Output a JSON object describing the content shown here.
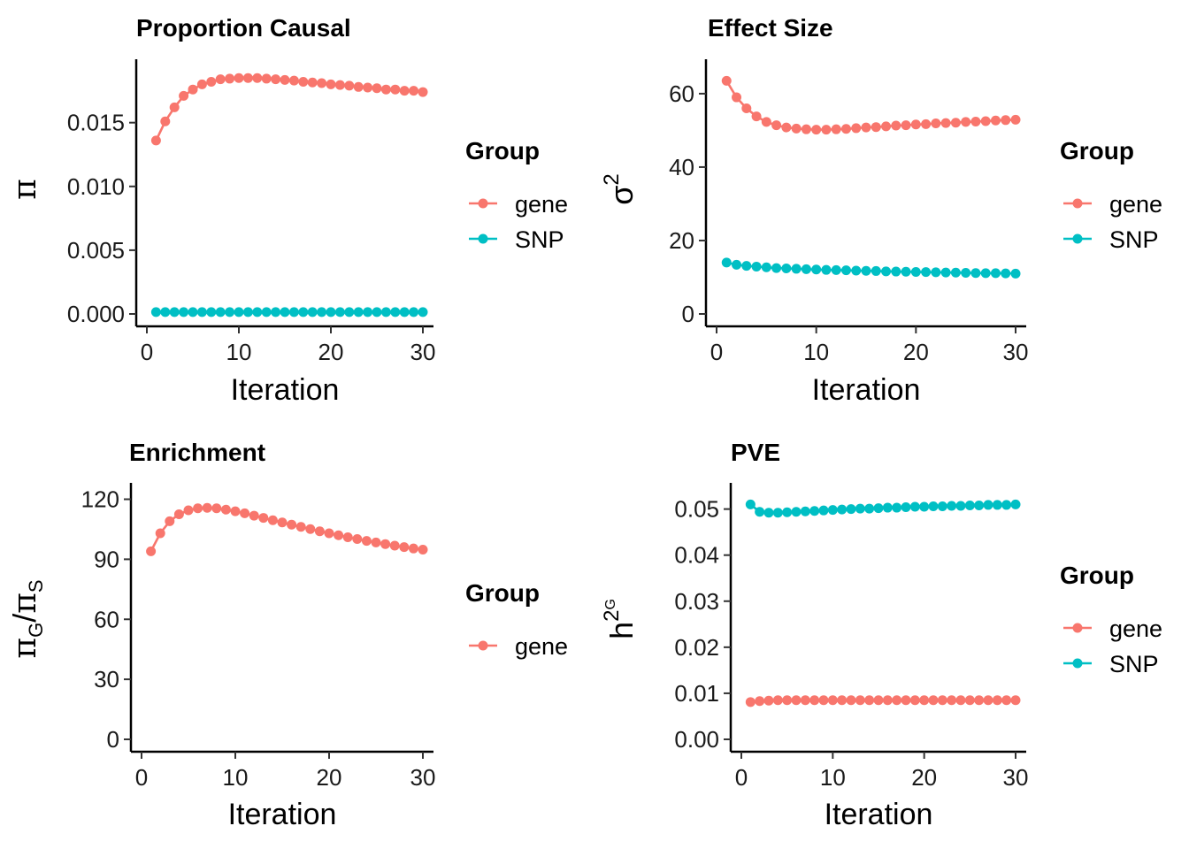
{
  "colors": {
    "gene": "#F8766D",
    "SNP": "#00BFC4"
  },
  "legend": {
    "title": "Group",
    "gene": "gene",
    "snp": "SNP"
  },
  "chart_data": [
    {
      "type": "line",
      "title": "Proportion Causal",
      "xlabel": "Iteration",
      "ylabel": "π",
      "xlim": [
        0,
        30
      ],
      "ylim": [
        0,
        0.019
      ],
      "xticks": [
        0,
        10,
        20,
        30
      ],
      "yticks": [
        0.0,
        0.005,
        0.01,
        0.015
      ],
      "ytick_labels": [
        "0.000",
        "0.005",
        "0.010",
        "0.015"
      ],
      "legend_entries": [
        "gene",
        "SNP"
      ],
      "x": [
        1,
        2,
        3,
        4,
        5,
        6,
        7,
        8,
        9,
        10,
        11,
        12,
        13,
        14,
        15,
        16,
        17,
        18,
        19,
        20,
        21,
        22,
        23,
        24,
        25,
        26,
        27,
        28,
        29,
        30
      ],
      "series": [
        {
          "name": "gene",
          "values": [
            0.0136,
            0.0151,
            0.0162,
            0.0171,
            0.0176,
            0.018,
            0.0182,
            0.0184,
            0.01845,
            0.0185,
            0.0185,
            0.0185,
            0.01845,
            0.0184,
            0.01835,
            0.0183,
            0.0182,
            0.01815,
            0.0181,
            0.018,
            0.01795,
            0.0179,
            0.0178,
            0.01775,
            0.0177,
            0.0176,
            0.0176,
            0.0175,
            0.0175,
            0.0174
          ]
        },
        {
          "name": "SNP",
          "values": [
            0.00015,
            0.00015,
            0.00015,
            0.00015,
            0.00015,
            0.00015,
            0.00015,
            0.00015,
            0.00015,
            0.00015,
            0.00015,
            0.00015,
            0.00015,
            0.00015,
            0.00015,
            0.00015,
            0.00015,
            0.00015,
            0.00015,
            0.00015,
            0.00015,
            0.00015,
            0.00015,
            0.00015,
            0.00015,
            0.00015,
            0.00015,
            0.00015,
            0.00015,
            0.00015
          ]
        }
      ]
    },
    {
      "type": "line",
      "title": "Effect Size",
      "xlabel": "Iteration",
      "ylabel": "σ2",
      "xlim": [
        0,
        30
      ],
      "ylim": [
        0,
        66
      ],
      "xticks": [
        0,
        10,
        20,
        30
      ],
      "yticks": [
        0,
        20,
        40,
        60
      ],
      "ytick_labels": [
        "0",
        "20",
        "40",
        "60"
      ],
      "legend_entries": [
        "gene",
        "SNP"
      ],
      "x": [
        1,
        2,
        3,
        4,
        5,
        6,
        7,
        8,
        9,
        10,
        11,
        12,
        13,
        14,
        15,
        16,
        17,
        18,
        19,
        20,
        21,
        22,
        23,
        24,
        25,
        26,
        27,
        28,
        29,
        30
      ],
      "series": [
        {
          "name": "gene",
          "values": [
            63.5,
            59,
            56,
            53.8,
            52.3,
            51.4,
            50.8,
            50.5,
            50.3,
            50.2,
            50.2,
            50.3,
            50.4,
            50.6,
            50.8,
            50.9,
            51.1,
            51.3,
            51.4,
            51.6,
            51.7,
            51.9,
            52,
            52.1,
            52.3,
            52.4,
            52.5,
            52.7,
            52.8,
            52.9
          ]
        },
        {
          "name": "SNP",
          "values": [
            14,
            13.4,
            13.1,
            12.9,
            12.7,
            12.5,
            12.4,
            12.3,
            12.2,
            12.1,
            12,
            11.95,
            11.9,
            11.8,
            11.75,
            11.7,
            11.6,
            11.55,
            11.5,
            11.45,
            11.4,
            11.35,
            11.3,
            11.25,
            11.2,
            11.15,
            11.1,
            11.1,
            11.05,
            11
          ]
        }
      ]
    },
    {
      "type": "line",
      "title": "Enrichment",
      "xlabel": "Iteration",
      "ylabel": "πG/πS",
      "xlim": [
        0,
        30
      ],
      "ylim": [
        0,
        122
      ],
      "xticks": [
        0,
        10,
        20,
        30
      ],
      "yticks": [
        0,
        30,
        60,
        90,
        120
      ],
      "ytick_labels": [
        "0",
        "30",
        "60",
        "90",
        "120"
      ],
      "legend_entries": [
        "gene"
      ],
      "x": [
        1,
        2,
        3,
        4,
        5,
        6,
        7,
        8,
        9,
        10,
        11,
        12,
        13,
        14,
        15,
        16,
        17,
        18,
        19,
        20,
        21,
        22,
        23,
        24,
        25,
        26,
        27,
        28,
        29,
        30
      ],
      "series": [
        {
          "name": "gene",
          "values": [
            94,
            103,
            109,
            112.5,
            114.5,
            115.5,
            115.7,
            115.5,
            114.8,
            114,
            113,
            111.8,
            110.7,
            109.5,
            108.4,
            107.3,
            106.2,
            105.1,
            104,
            103,
            102,
            101,
            100.1,
            99.2,
            98.4,
            97.6,
            96.8,
            96.1,
            95.4,
            94.8
          ]
        }
      ]
    },
    {
      "type": "line",
      "title": "PVE",
      "xlabel": "Iteration",
      "ylabel": "h2G",
      "xlim": [
        0,
        30
      ],
      "ylim": [
        0,
        0.053
      ],
      "xticks": [
        0,
        10,
        20,
        30
      ],
      "yticks": [
        0.0,
        0.01,
        0.02,
        0.03,
        0.04,
        0.05
      ],
      "ytick_labels": [
        "0.00",
        "0.01",
        "0.02",
        "0.03",
        "0.04",
        "0.05"
      ],
      "legend_entries": [
        "gene",
        "SNP"
      ],
      "x": [
        1,
        2,
        3,
        4,
        5,
        6,
        7,
        8,
        9,
        10,
        11,
        12,
        13,
        14,
        15,
        16,
        17,
        18,
        19,
        20,
        21,
        22,
        23,
        24,
        25,
        26,
        27,
        28,
        29,
        30
      ],
      "series": [
        {
          "name": "gene",
          "values": [
            0.0081,
            0.0083,
            0.0084,
            0.0085,
            0.0085,
            0.0085,
            0.0085,
            0.0085,
            0.0085,
            0.0085,
            0.0085,
            0.0085,
            0.0085,
            0.0085,
            0.0085,
            0.0085,
            0.0085,
            0.0085,
            0.0085,
            0.0085,
            0.0085,
            0.0085,
            0.0085,
            0.0085,
            0.0085,
            0.0085,
            0.0085,
            0.0085,
            0.0085,
            0.0085
          ]
        },
        {
          "name": "SNP",
          "values": [
            0.051,
            0.0494,
            0.0492,
            0.0492,
            0.0493,
            0.0494,
            0.0495,
            0.0496,
            0.0497,
            0.0498,
            0.0499,
            0.05,
            0.0501,
            0.0501,
            0.0502,
            0.0503,
            0.0503,
            0.0504,
            0.0505,
            0.0505,
            0.0506,
            0.0506,
            0.0507,
            0.0507,
            0.0508,
            0.0508,
            0.0509,
            0.0509,
            0.0509,
            0.051
          ]
        }
      ]
    }
  ]
}
